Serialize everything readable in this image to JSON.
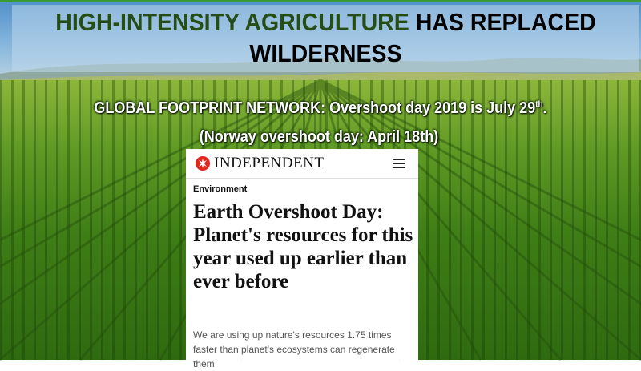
{
  "slide": {
    "title_green": "HIGH-INTENSITY AGRICULTURE",
    "title_black_1": "HAS REPLACED",
    "title_black_2": "WILDERNESS",
    "subtitle_1_main": "GLOBAL FOOTPRINT NETWORK: Overshoot day 2019 is July 29",
    "subtitle_1_sup": "th",
    "subtitle_1_end": ".",
    "subtitle_2": "(Norway overshoot day: April 18th)"
  },
  "article": {
    "logo_text": "INDEPENDENT",
    "menu_icon": "hamburger-menu-icon",
    "section": "Environment",
    "headline": "Earth Overshoot Day: Planet's resources for this year used up earlier than ever before",
    "standfirst": "We are using up nature's resources 1.75 times faster than planet's ecosystems can regenerate them"
  },
  "colors": {
    "title_green": "#254d16",
    "accent_bar": "#3c9b2f",
    "logo_red": "#e1261c"
  }
}
